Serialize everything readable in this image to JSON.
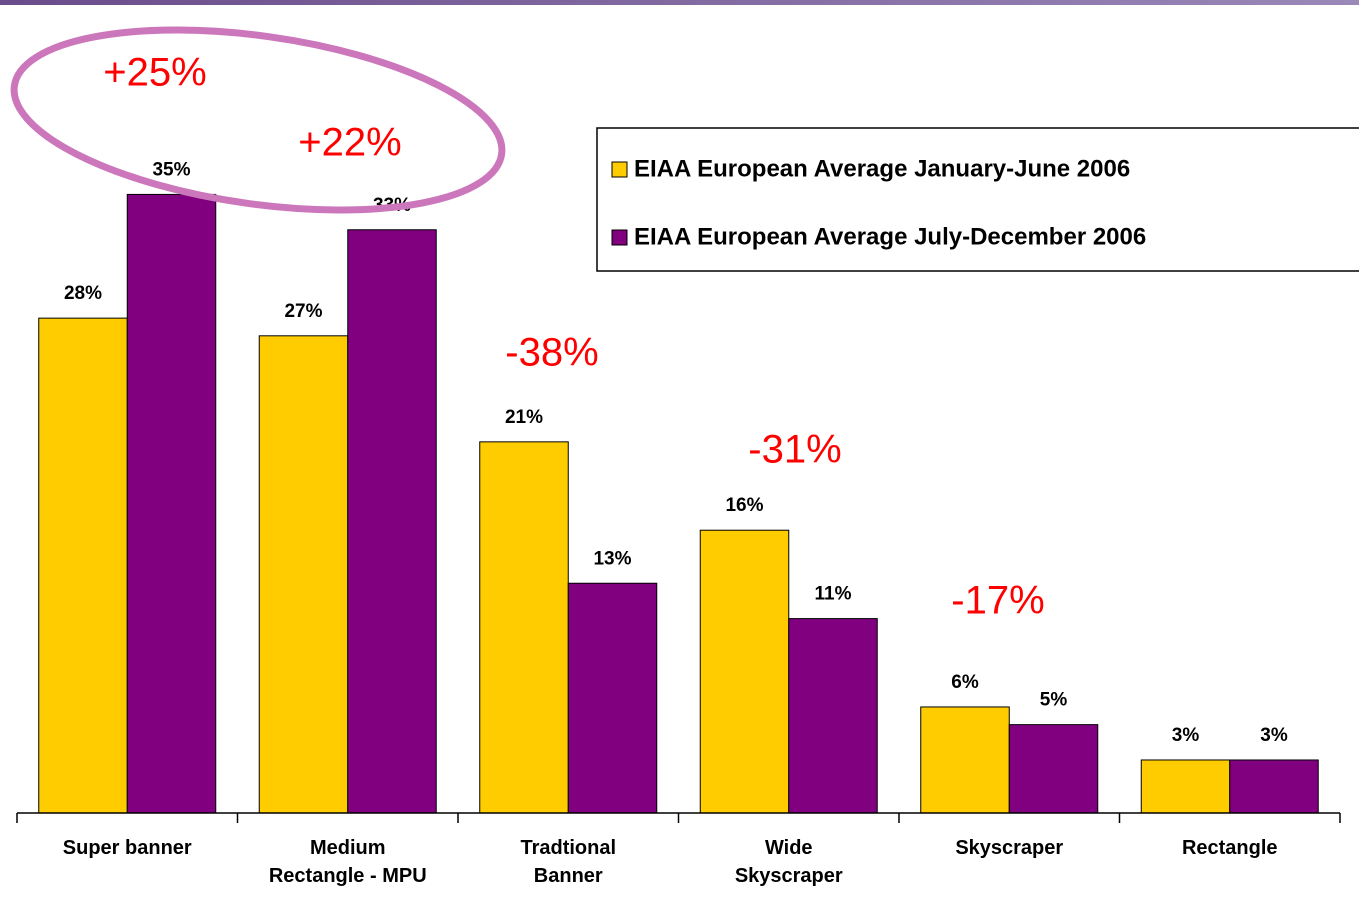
{
  "chart_data": {
    "type": "bar",
    "categories": [
      "Super banner",
      "Medium\nRectangle - MPU",
      "Tradtional\nBanner",
      "Wide\nSkyscraper",
      "Skyscraper",
      "Rectangle"
    ],
    "series": [
      {
        "name": "EIAA European Average January-June 2006",
        "color": "#ffcc00",
        "values": [
          28,
          27,
          21,
          16,
          6,
          3
        ],
        "value_labels": [
          "28%",
          "27%",
          "21%",
          "16%",
          "6%",
          "3%"
        ]
      },
      {
        "name": "EIAA European Average July-December 2006",
        "color": "#800080",
        "values": [
          35,
          33,
          13,
          11,
          5,
          3
        ],
        "value_labels": [
          "35%",
          "33%",
          "13%",
          "11%",
          "5%",
          "3%"
        ]
      }
    ],
    "ylim": [
      0,
      46
    ],
    "annotations": [
      "+25%",
      "+22%",
      "-38%",
      "-31%",
      "-17%"
    ],
    "annotation_color": "#ff0000"
  }
}
